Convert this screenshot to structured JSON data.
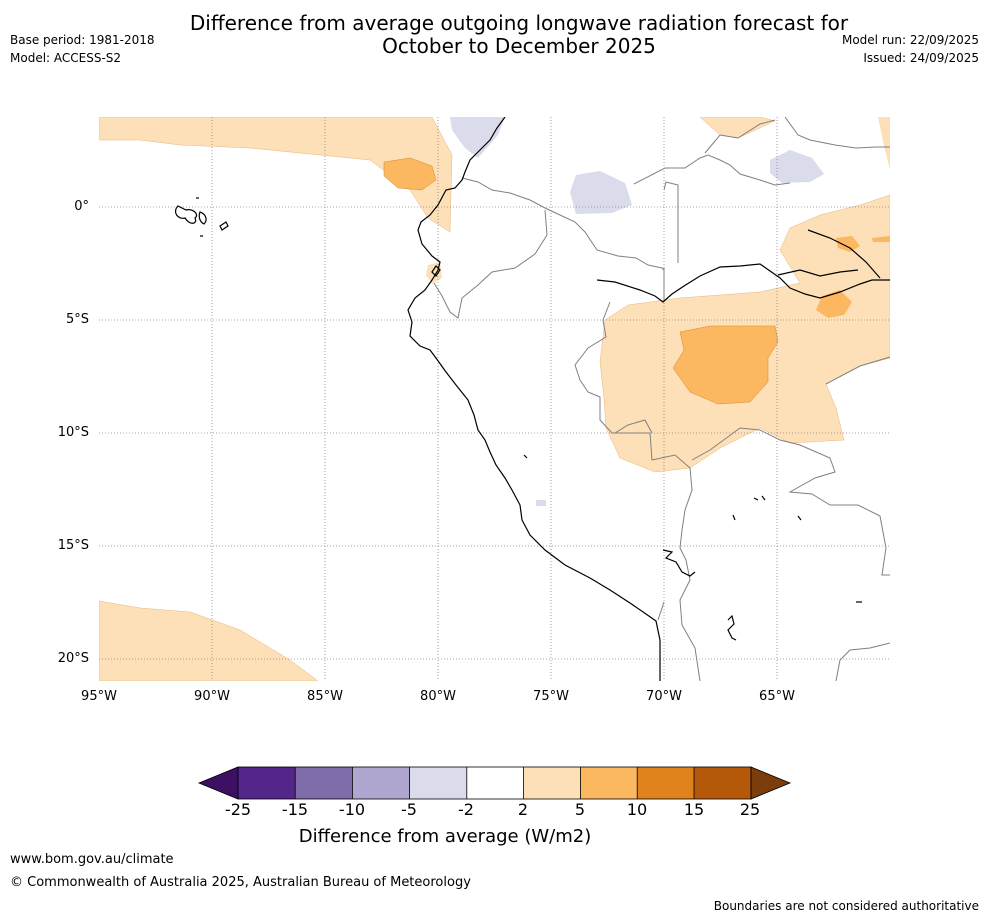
{
  "title_line1": "Difference from average outgoing longwave radiation forecast for",
  "title_line2": "October to December 2025",
  "meta_left": {
    "base_period": "Base period: 1981-2018",
    "model": "Model: ACCESS-S2"
  },
  "meta_right": {
    "model_run": "Model run: 22/09/2025",
    "issued": "Issued: 24/09/2025"
  },
  "map": {
    "lat_labels": [
      "0°",
      "5°S",
      "10°S",
      "15°S",
      "20°S"
    ],
    "lon_labels": [
      "95°W",
      "90°W",
      "85°W",
      "80°W",
      "75°W",
      "70°W",
      "65°W"
    ]
  },
  "colorbar": {
    "ticks": [
      "-25",
      "-15",
      "-10",
      "-5",
      "-2",
      "2",
      "5",
      "10",
      "15",
      "25"
    ],
    "label": "Difference from average (W/m2)",
    "colors": [
      "#3d1063",
      "#54268a",
      "#7f6daa",
      "#b0a7d0",
      "#dadbeb",
      "#ffffff",
      "#fde0b8",
      "#fbb860",
      "#e0831c",
      "#b4590a",
      "#7b3d0b"
    ]
  },
  "footer": {
    "url": "www.bom.gov.au/climate",
    "copyright": "© Commonwealth of Australia 2025, Australian Bureau of Meteorology",
    "note": "Boundaries are not considered authoritative"
  }
}
